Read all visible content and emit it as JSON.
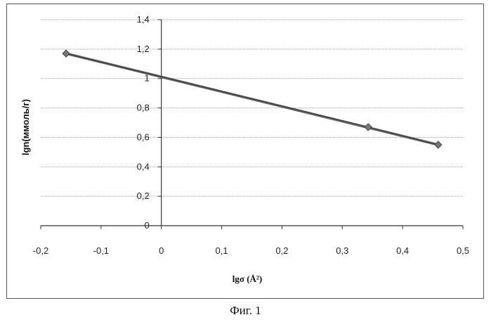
{
  "caption": "Фиг. 1",
  "chart_data": {
    "type": "line",
    "xlabel": "lgσ (Å²)",
    "ylabel": "lgn(ммоль/г)",
    "xlim": [
      -0.2,
      0.5
    ],
    "ylim": [
      0,
      1.4
    ],
    "x_ticks": [
      "-0,2",
      "-0,1",
      "0",
      "0,1",
      "0,2",
      "0,3",
      "0,4",
      "0,5"
    ],
    "y_ticks": [
      "0",
      "0,2",
      "0,4",
      "0,6",
      "0,8",
      "1",
      "1,2",
      "1,4"
    ],
    "grid": true,
    "legend": "none",
    "series": [
      {
        "points": [
          [
            -0.158,
            1.17
          ],
          [
            0.343,
            0.67
          ],
          [
            0.459,
            0.55
          ]
        ],
        "color": "#444444",
        "marker": "diamond"
      }
    ],
    "trendline": {
      "points": [
        [
          -0.158,
          1.17
        ],
        [
          0.459,
          0.55
        ]
      ],
      "color": "#666666"
    }
  }
}
